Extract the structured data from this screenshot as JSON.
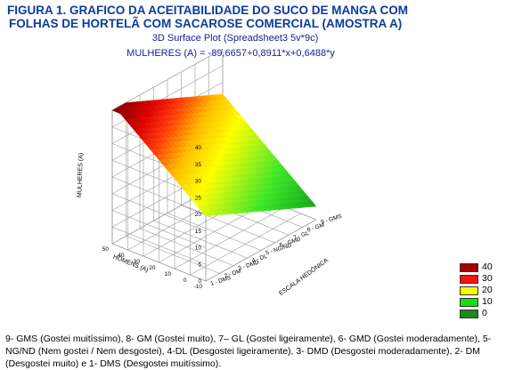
{
  "figure": {
    "title_line1": "FIGURA 1. GRAFICO DA ACEITABILIDADE DO SUCO DE MANGA COM",
    "title_line2": "FOLHAS DE HORTELÃ COM SACAROSE COMERCIAL (AMOSTRA A)",
    "subtitle": "3D Surface Plot (Spreadsheet3 5v*9c)",
    "equation": "MULHERES (A) = -89,6657+0,8911*x+0,6488*y",
    "caption": "9- GMS (Gostei muitíssimo), 8- GM (Gostei muito), 7– GL (Gostei ligeiramente), 6- GMD (Gostei moderadamente), 5- NG/ND (Nem gostei / Nem desgostei), 4-DL (Desgostei ligeiramente), 3- DMD (Desgostei moderadamente), 2- DM (Desgostei muito) e 1- DMS (Desgostei muitíssimo)."
  },
  "chart_data": {
    "type": "surface",
    "z_label": "MULHERES (A)",
    "y_label": "HOMENS (A)",
    "x_label": "ESCALA HEDÔNICA",
    "z_ticks": [
      "40",
      "35",
      "30",
      "25",
      "20",
      "15",
      "10",
      "5",
      "0"
    ],
    "y_ticks": [
      "-10",
      "0",
      "10",
      "20",
      "30",
      "40",
      "50"
    ],
    "x_ticks": [
      "1 - DMS",
      "2 - DM",
      "3 - DMD",
      "4 - DL",
      "5 - NG/ND",
      "6 - GMD",
      "7 - GL",
      "8 - GM",
      "9 - GMS"
    ],
    "x_range": [
      1,
      9
    ],
    "y_range": [
      -10,
      50
    ],
    "z_range": [
      0,
      40
    ],
    "legend": [
      {
        "label": "40",
        "color": "#a50000"
      },
      {
        "label": "30",
        "color": "#ff1010"
      },
      {
        "label": "20",
        "color": "#ffff00"
      },
      {
        "label": "10",
        "color": "#10e010"
      },
      {
        "label": "0",
        "color": "#1a8a1a"
      }
    ]
  }
}
